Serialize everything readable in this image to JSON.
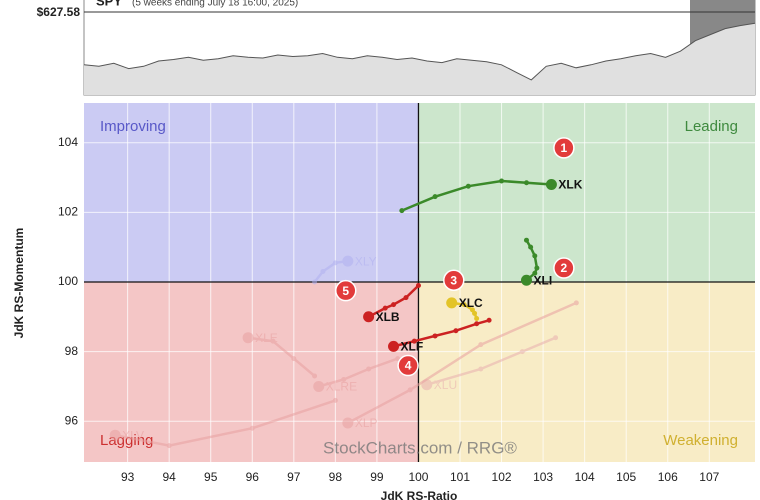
{
  "chart_data": {
    "type": "rrg",
    "benchmark": {
      "symbol": "SPY",
      "subtitle": "(5 weeks ending July 18 16:00, 2025)",
      "price_label": "$627.58",
      "values": [
        40,
        38,
        42,
        35,
        38,
        45,
        47,
        50,
        46,
        48,
        52,
        50,
        49,
        53,
        51,
        52,
        55,
        50,
        48,
        52,
        50,
        47,
        49,
        45,
        43,
        48,
        46,
        44,
        40,
        30,
        20,
        38,
        42,
        36,
        40,
        45,
        48,
        52,
        55,
        50,
        58,
        72,
        80,
        88,
        92,
        95
      ],
      "ylim": [
        0,
        110
      ]
    },
    "x_label": "JdK RS-Ratio",
    "y_label": "JdK RS-Momentum",
    "xlim": [
      91.95,
      108.1
    ],
    "ylim": [
      94.83,
      105.14
    ],
    "xticks": [
      93,
      94,
      95,
      96,
      97,
      98,
      99,
      100,
      101,
      102,
      103,
      104,
      105,
      106,
      107
    ],
    "yticks": [
      96,
      98,
      100,
      102,
      104
    ],
    "center": [
      100,
      100
    ],
    "grid": true,
    "quadrants": [
      {
        "label": "Improving",
        "color": "#cbcbf3",
        "text_color": "#5858c8"
      },
      {
        "label": "Leading",
        "color": "#cce6cc",
        "text_color": "#3f8a3f"
      },
      {
        "label": "Lagging",
        "color": "#f4c6c6",
        "text_color": "#cc3030"
      },
      {
        "label": "Weakening",
        "color": "#f8ecc6",
        "text_color": "#d0b030"
      }
    ],
    "series": [
      {
        "name": "XLK",
        "color": "#3b8a2a",
        "x": [
          99.6,
          100.4,
          101.2,
          102,
          102.6,
          103.2
        ],
        "y": [
          102.05,
          102.45,
          102.75,
          102.9,
          102.85,
          102.8
        ]
      },
      {
        "name": "XLI",
        "color": "#3b8a2a",
        "x": [
          102.6,
          102.7,
          102.8,
          102.85,
          102.8,
          102.6
        ],
        "y": [
          101.2,
          101.0,
          100.75,
          100.4,
          100.25,
          100.05
        ]
      },
      {
        "name": "XLC",
        "color": "#e3c428",
        "x": [
          101.4,
          101.35,
          101.3,
          101.1,
          100.8
        ],
        "y": [
          98.95,
          99.1,
          99.2,
          99.35,
          99.4
        ]
      },
      {
        "name": "XLB",
        "color": "#cc2222",
        "x": [
          100,
          99.7,
          99.4,
          99.2,
          98.8
        ],
        "y": [
          99.9,
          99.55,
          99.35,
          99.25,
          99.0
        ]
      },
      {
        "name": "XLF",
        "color": "#cc2222",
        "x": [
          101.7,
          101.4,
          100.9,
          100.4,
          99.9,
          99.4
        ],
        "y": [
          98.9,
          98.8,
          98.6,
          98.45,
          98.3,
          98.15
        ]
      },
      {
        "name": "XLY",
        "color": "#b0b0f0",
        "faded": true,
        "x": [
          97.5,
          97.7,
          98.0,
          98.3
        ],
        "y": [
          100.0,
          100.3,
          100.55,
          100.6
        ]
      },
      {
        "name": "XLE",
        "color": "#e8a0a0",
        "faded": true,
        "x": [
          97.5,
          97.0,
          96.5,
          95.9
        ],
        "y": [
          97.3,
          97.8,
          98.3,
          98.4
        ]
      },
      {
        "name": "XLRE",
        "color": "#e8a0a0",
        "faded": true,
        "x": [
          99.5,
          98.8,
          98.2,
          97.6
        ],
        "y": [
          97.8,
          97.5,
          97.2,
          97.0
        ]
      },
      {
        "name": "XLU",
        "color": "#e8b0b0",
        "faded": true,
        "x": [
          103.3,
          102.5,
          101.5,
          100.2
        ],
        "y": [
          98.4,
          98.0,
          97.5,
          97.05
        ]
      },
      {
        "name": "XLP",
        "color": "#e8a0a0",
        "faded": true,
        "x": [
          103.8,
          101.5,
          99.8,
          98.3
        ],
        "y": [
          99.4,
          98.2,
          96.9,
          95.95
        ]
      },
      {
        "name": "XLV",
        "color": "#e8a0a0",
        "faded": true,
        "x": [
          98.0,
          96.0,
          94.0,
          92.7
        ],
        "y": [
          96.6,
          95.8,
          95.3,
          95.6
        ]
      }
    ],
    "annotations": [
      {
        "label": "1",
        "x": 103.5,
        "y": 103.85
      },
      {
        "label": "2",
        "x": 103.5,
        "y": 100.4
      },
      {
        "label": "3",
        "x": 100.85,
        "y": 100.05
      },
      {
        "label": "4",
        "x": 99.75,
        "y": 97.6
      },
      {
        "label": "5",
        "x": 98.25,
        "y": 99.75
      }
    ],
    "watermark": "StockCharts.com / RRG®"
  }
}
